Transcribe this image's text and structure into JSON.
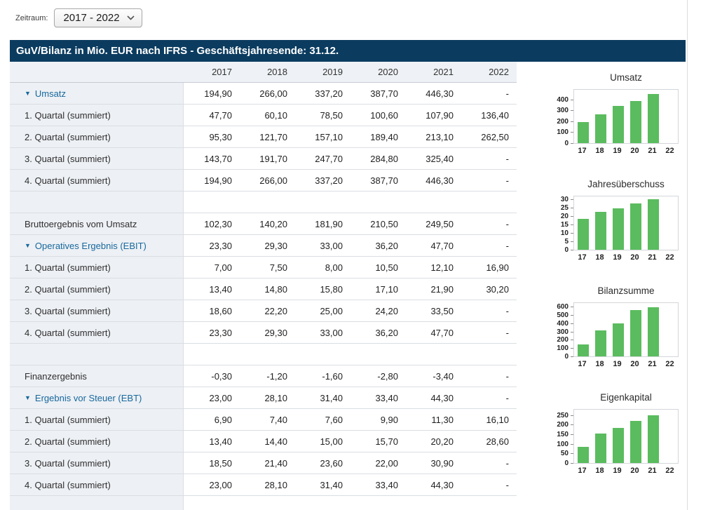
{
  "toolbar": {
    "zeitraum_label": "Zeitraum:",
    "zeitraum_value": "2017 - 2022"
  },
  "header": {
    "title": "GuV/Bilanz in Mio. EUR nach IFRS - Geschäftsjahresende: 31.12."
  },
  "colors": {
    "titlebar_bg": "#0b3c60",
    "bar_green": "#5abc5e",
    "link_blue": "#17689e",
    "label_col_bg": "#edf0f4"
  },
  "table": {
    "columns": [
      "2017",
      "2018",
      "2019",
      "2020",
      "2021",
      "2022"
    ],
    "rows": [
      {
        "label": "Umsatz",
        "expandable": true,
        "values": [
          "194,90",
          "266,00",
          "337,20",
          "387,70",
          "446,30",
          "-"
        ]
      },
      {
        "label": "1. Quartal (summiert)",
        "values": [
          "47,70",
          "60,10",
          "78,50",
          "100,60",
          "107,90",
          "136,40"
        ]
      },
      {
        "label": "2. Quartal (summiert)",
        "values": [
          "95,30",
          "121,70",
          "157,10",
          "189,40",
          "213,10",
          "262,50"
        ]
      },
      {
        "label": "3. Quartal (summiert)",
        "values": [
          "143,70",
          "191,70",
          "247,70",
          "284,80",
          "325,40",
          "-"
        ]
      },
      {
        "label": "4. Quartal (summiert)",
        "values": [
          "194,90",
          "266,00",
          "337,20",
          "387,70",
          "446,30",
          "-"
        ]
      },
      {
        "blank": true
      },
      {
        "label": "Bruttoergebnis vom Umsatz",
        "values": [
          "102,30",
          "140,20",
          "181,90",
          "210,50",
          "249,50",
          "-"
        ]
      },
      {
        "label": "Operatives Ergebnis (EBIT)",
        "expandable": true,
        "values": [
          "23,30",
          "29,30",
          "33,00",
          "36,20",
          "47,70",
          "-"
        ]
      },
      {
        "label": "1. Quartal (summiert)",
        "values": [
          "7,00",
          "7,50",
          "8,00",
          "10,50",
          "12,10",
          "16,90"
        ]
      },
      {
        "label": "2. Quartal (summiert)",
        "values": [
          "13,40",
          "14,80",
          "15,80",
          "17,10",
          "21,90",
          "30,20"
        ]
      },
      {
        "label": "3. Quartal (summiert)",
        "values": [
          "18,60",
          "22,20",
          "25,00",
          "24,20",
          "33,50",
          "-"
        ]
      },
      {
        "label": "4. Quartal (summiert)",
        "values": [
          "23,30",
          "29,30",
          "33,00",
          "36,20",
          "47,70",
          "-"
        ]
      },
      {
        "blank": true
      },
      {
        "label": "Finanzergebnis",
        "values": [
          "-0,30",
          "-1,20",
          "-1,60",
          "-2,80",
          "-3,40",
          "-"
        ]
      },
      {
        "label": "Ergebnis vor Steuer (EBT)",
        "expandable": true,
        "values": [
          "23,00",
          "28,10",
          "31,40",
          "33,40",
          "44,30",
          "-"
        ]
      },
      {
        "label": "1. Quartal (summiert)",
        "values": [
          "6,90",
          "7,40",
          "7,60",
          "9,90",
          "11,30",
          "16,10"
        ]
      },
      {
        "label": "2. Quartal (summiert)",
        "values": [
          "13,40",
          "14,40",
          "15,00",
          "15,70",
          "20,20",
          "28,60"
        ]
      },
      {
        "label": "3. Quartal (summiert)",
        "values": [
          "18,50",
          "21,40",
          "23,60",
          "22,00",
          "30,90",
          "-"
        ]
      },
      {
        "label": "4. Quartal (summiert)",
        "values": [
          "23,00",
          "28,10",
          "31,40",
          "33,40",
          "44,30",
          "-"
        ]
      },
      {
        "blank": true
      }
    ]
  },
  "chart_data": [
    {
      "type": "bar",
      "title": "Umsatz",
      "categories": [
        "17",
        "18",
        "19",
        "20",
        "21",
        "22"
      ],
      "values": [
        194.9,
        266.0,
        337.2,
        387.7,
        446.3,
        null
      ],
      "yticks": [
        0,
        100,
        200,
        300,
        400
      ],
      "ylim": [
        0,
        500
      ],
      "xlabel": "",
      "ylabel": "",
      "grid": false,
      "legend": "none",
      "bar_color": "#5abc5e"
    },
    {
      "type": "bar",
      "title": "Jahresüberschuss",
      "categories": [
        "17",
        "18",
        "19",
        "20",
        "21",
        "22"
      ],
      "values": [
        18.2,
        22.3,
        24.6,
        27.3,
        30.1,
        null
      ],
      "yticks": [
        0,
        5,
        10,
        15,
        20,
        25,
        30
      ],
      "ylim": [
        0,
        32.5
      ],
      "xlabel": "",
      "ylabel": "",
      "grid": false,
      "legend": "none",
      "bar_color": "#5abc5e"
    },
    {
      "type": "bar",
      "title": "Bilanzsumme",
      "categories": [
        "17",
        "18",
        "19",
        "20",
        "21",
        "22"
      ],
      "values": [
        148,
        312,
        395,
        560,
        595,
        null
      ],
      "yticks": [
        0,
        100,
        200,
        300,
        400,
        500,
        600
      ],
      "ylim": [
        0,
        660
      ],
      "xlabel": "",
      "ylabel": "",
      "grid": false,
      "legend": "none",
      "bar_color": "#5abc5e"
    },
    {
      "type": "bar",
      "title": "Eigenkapital",
      "categories": [
        "17",
        "18",
        "19",
        "20",
        "21",
        "22"
      ],
      "values": [
        85,
        154,
        181,
        220,
        250,
        null
      ],
      "yticks": [
        0,
        50,
        100,
        150,
        200,
        250
      ],
      "ylim": [
        0,
        285
      ],
      "xlabel": "",
      "ylabel": "",
      "grid": false,
      "legend": "none",
      "bar_color": "#5abc5e"
    }
  ]
}
